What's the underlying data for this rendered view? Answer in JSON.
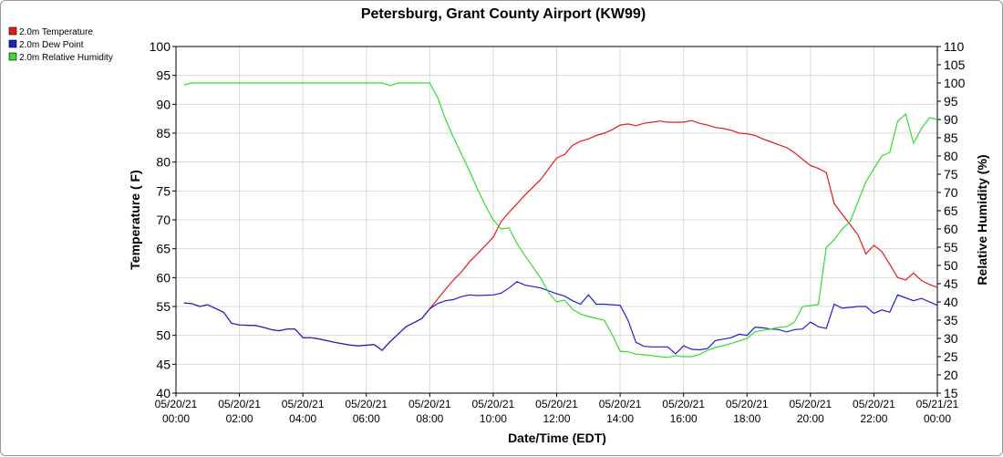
{
  "chart_data": {
    "type": "line",
    "title": "Petersburg, Grant County Airport (KW99)",
    "xlabel": "Date/Time (EDT)",
    "ylabel": "Temperature ( F)",
    "y2label": "Relative Humidity (%)",
    "xlim": [
      0,
      24
    ],
    "ylim": [
      40,
      100
    ],
    "y2lim": [
      15,
      110
    ],
    "yticks": [
      40,
      45,
      50,
      55,
      60,
      65,
      70,
      75,
      80,
      85,
      90,
      95,
      100
    ],
    "y2ticks": [
      15,
      20,
      25,
      30,
      35,
      40,
      45,
      50,
      55,
      60,
      65,
      70,
      75,
      80,
      85,
      90,
      95,
      100,
      105,
      110
    ],
    "xticks": [
      {
        "x": 0,
        "date": "05/20/21",
        "time": "00:00"
      },
      {
        "x": 2,
        "date": "05/20/21",
        "time": "02:00"
      },
      {
        "x": 4,
        "date": "05/20/21",
        "time": "04:00"
      },
      {
        "x": 6,
        "date": "05/20/21",
        "time": "06:00"
      },
      {
        "x": 8,
        "date": "05/20/21",
        "time": "08:00"
      },
      {
        "x": 10,
        "date": "05/20/21",
        "time": "10:00"
      },
      {
        "x": 12,
        "date": "05/20/21",
        "time": "12:00"
      },
      {
        "x": 14,
        "date": "05/20/21",
        "time": "14:00"
      },
      {
        "x": 16,
        "date": "05/20/21",
        "time": "16:00"
      },
      {
        "x": 18,
        "date": "05/20/21",
        "time": "18:00"
      },
      {
        "x": 20,
        "date": "05/20/21",
        "time": "20:00"
      },
      {
        "x": 22,
        "date": "05/20/21",
        "time": "22:00"
      },
      {
        "x": 24,
        "date": "05/21/21",
        "time": "00:00"
      }
    ],
    "grid": true,
    "legend_position": "top-left",
    "series": [
      {
        "name": "2.0m Temperature",
        "color": "#e41a1c",
        "axis": "left",
        "points": [
          [
            0.25,
            55.6
          ],
          [
            0.5,
            55.5
          ],
          [
            0.75,
            55.0
          ],
          [
            1.0,
            55.3
          ],
          [
            1.5,
            54.0
          ],
          [
            1.75,
            52.1
          ],
          [
            2.0,
            51.8
          ],
          [
            2.5,
            51.7
          ],
          [
            2.75,
            51.4
          ],
          [
            3.0,
            51.0
          ],
          [
            3.25,
            50.8
          ],
          [
            3.5,
            51.1
          ],
          [
            3.75,
            51.1
          ],
          [
            4.0,
            49.6
          ],
          [
            4.25,
            49.6
          ],
          [
            4.5,
            49.4
          ],
          [
            5.0,
            48.8
          ],
          [
            5.5,
            48.3
          ],
          [
            5.75,
            48.2
          ],
          [
            6.25,
            48.4
          ],
          [
            6.5,
            47.4
          ],
          [
            6.75,
            48.9
          ],
          [
            7.25,
            51.5
          ],
          [
            7.75,
            52.9
          ],
          [
            8.0,
            54.6
          ],
          [
            8.25,
            56.3
          ],
          [
            8.5,
            58.0
          ],
          [
            8.75,
            59.6
          ],
          [
            9.0,
            61.0
          ],
          [
            9.25,
            62.7
          ],
          [
            9.5,
            64.1
          ],
          [
            10.0,
            67.0
          ],
          [
            10.25,
            69.7
          ],
          [
            10.5,
            71.3
          ],
          [
            11.0,
            74.3
          ],
          [
            11.5,
            77.0
          ],
          [
            12.0,
            80.7
          ],
          [
            12.25,
            81.3
          ],
          [
            12.5,
            82.9
          ],
          [
            12.75,
            83.6
          ],
          [
            13.0,
            84.0
          ],
          [
            13.25,
            84.6
          ],
          [
            13.5,
            85.0
          ],
          [
            13.75,
            85.6
          ],
          [
            14.0,
            86.4
          ],
          [
            14.25,
            86.6
          ],
          [
            14.5,
            86.3
          ],
          [
            14.75,
            86.7
          ],
          [
            15.0,
            86.9
          ],
          [
            15.25,
            87.1
          ],
          [
            15.5,
            86.9
          ],
          [
            15.75,
            86.9
          ],
          [
            16.0,
            86.9
          ],
          [
            16.25,
            87.2
          ],
          [
            16.5,
            86.7
          ],
          [
            16.75,
            86.4
          ],
          [
            17.0,
            86.0
          ],
          [
            17.25,
            85.8
          ],
          [
            17.5,
            85.5
          ],
          [
            17.75,
            85.0
          ],
          [
            18.0,
            84.9
          ],
          [
            18.25,
            84.6
          ],
          [
            18.5,
            84.0
          ],
          [
            18.75,
            83.5
          ],
          [
            19.0,
            83.0
          ],
          [
            19.25,
            82.5
          ],
          [
            19.5,
            81.6
          ],
          [
            19.75,
            80.5
          ],
          [
            20.0,
            79.4
          ],
          [
            20.25,
            78.9
          ],
          [
            20.5,
            78.2
          ],
          [
            20.75,
            72.8
          ],
          [
            21.0,
            71.0
          ],
          [
            21.25,
            69.2
          ],
          [
            21.5,
            67.4
          ],
          [
            21.75,
            64.1
          ],
          [
            22.0,
            65.6
          ],
          [
            22.25,
            64.5
          ],
          [
            22.5,
            62.3
          ],
          [
            22.75,
            60.0
          ],
          [
            23.0,
            59.6
          ],
          [
            23.25,
            60.8
          ],
          [
            23.5,
            59.5
          ],
          [
            23.75,
            58.8
          ],
          [
            24.0,
            58.3
          ]
        ]
      },
      {
        "name": "2.0m Dew Point",
        "color": "#1f1fcf",
        "axis": "left",
        "points": [
          [
            0.25,
            55.6
          ],
          [
            0.5,
            55.5
          ],
          [
            0.75,
            55.0
          ],
          [
            1.0,
            55.3
          ],
          [
            1.5,
            54.0
          ],
          [
            1.75,
            52.1
          ],
          [
            2.0,
            51.8
          ],
          [
            2.5,
            51.7
          ],
          [
            2.75,
            51.4
          ],
          [
            3.0,
            51.0
          ],
          [
            3.25,
            50.8
          ],
          [
            3.5,
            51.1
          ],
          [
            3.75,
            51.1
          ],
          [
            4.0,
            49.6
          ],
          [
            4.25,
            49.6
          ],
          [
            4.5,
            49.4
          ],
          [
            5.0,
            48.8
          ],
          [
            5.5,
            48.3
          ],
          [
            5.75,
            48.2
          ],
          [
            6.25,
            48.4
          ],
          [
            6.5,
            47.4
          ],
          [
            6.75,
            48.9
          ],
          [
            7.25,
            51.5
          ],
          [
            7.75,
            52.9
          ],
          [
            8.0,
            54.6
          ],
          [
            8.25,
            55.5
          ],
          [
            8.5,
            56.0
          ],
          [
            8.75,
            56.2
          ],
          [
            9.0,
            56.7
          ],
          [
            9.25,
            57.0
          ],
          [
            9.5,
            56.9
          ],
          [
            10.0,
            57.0
          ],
          [
            10.25,
            57.3
          ],
          [
            10.5,
            58.2
          ],
          [
            10.75,
            59.3
          ],
          [
            11.0,
            58.7
          ],
          [
            11.5,
            58.2
          ],
          [
            12.0,
            57.2
          ],
          [
            12.25,
            56.8
          ],
          [
            12.5,
            56.0
          ],
          [
            12.75,
            55.4
          ],
          [
            13.0,
            57.0
          ],
          [
            13.25,
            55.4
          ],
          [
            13.5,
            55.4
          ],
          [
            14.0,
            55.2
          ],
          [
            14.25,
            52.6
          ],
          [
            14.5,
            48.8
          ],
          [
            14.75,
            48.1
          ],
          [
            15.0,
            48.0
          ],
          [
            15.5,
            48.0
          ],
          [
            15.75,
            46.8
          ],
          [
            16.0,
            48.2
          ],
          [
            16.25,
            47.6
          ],
          [
            16.5,
            47.5
          ],
          [
            16.75,
            47.7
          ],
          [
            17.0,
            49.1
          ],
          [
            17.5,
            49.6
          ],
          [
            17.75,
            50.2
          ],
          [
            18.0,
            50.0
          ],
          [
            18.25,
            51.4
          ],
          [
            18.5,
            51.3
          ],
          [
            18.75,
            51.1
          ],
          [
            19.0,
            51.0
          ],
          [
            19.25,
            50.6
          ],
          [
            19.5,
            51.0
          ],
          [
            19.75,
            51.1
          ],
          [
            20.0,
            52.3
          ],
          [
            20.25,
            51.5
          ],
          [
            20.5,
            51.2
          ],
          [
            20.75,
            55.4
          ],
          [
            21.0,
            54.7
          ],
          [
            21.5,
            55.0
          ],
          [
            21.75,
            55.0
          ],
          [
            22.0,
            53.8
          ],
          [
            22.25,
            54.4
          ],
          [
            22.5,
            54.0
          ],
          [
            22.75,
            57.0
          ],
          [
            23.0,
            56.5
          ],
          [
            23.25,
            56.0
          ],
          [
            23.5,
            56.4
          ],
          [
            23.75,
            55.8
          ],
          [
            24.0,
            55.2
          ]
        ]
      },
      {
        "name": "2.0m Relative Humidity",
        "color": "#33dd33",
        "axis": "right",
        "points": [
          [
            0.25,
            99.5
          ],
          [
            0.5,
            100
          ],
          [
            1.0,
            100
          ],
          [
            2.0,
            100
          ],
          [
            3.0,
            100
          ],
          [
            4.0,
            100
          ],
          [
            5.0,
            100
          ],
          [
            6.0,
            100
          ],
          [
            6.5,
            100
          ],
          [
            6.75,
            99.3
          ],
          [
            7.0,
            100
          ],
          [
            7.5,
            100
          ],
          [
            8.0,
            100
          ],
          [
            8.25,
            96.0
          ],
          [
            8.5,
            90.0
          ],
          [
            8.75,
            85.0
          ],
          [
            9.0,
            80.5
          ],
          [
            9.25,
            76.0
          ],
          [
            9.5,
            71.0
          ],
          [
            9.75,
            66.5
          ],
          [
            10.0,
            62.5
          ],
          [
            10.25,
            60.0
          ],
          [
            10.5,
            60.3
          ],
          [
            10.75,
            56.0
          ],
          [
            11.0,
            52.7
          ],
          [
            11.5,
            46.5
          ],
          [
            11.75,
            42.5
          ],
          [
            12.0,
            40.0
          ],
          [
            12.25,
            40.5
          ],
          [
            12.5,
            38.0
          ],
          [
            12.75,
            36.7
          ],
          [
            13.0,
            36.0
          ],
          [
            13.5,
            35.0
          ],
          [
            13.75,
            31.0
          ],
          [
            14.0,
            26.5
          ],
          [
            14.25,
            26.3
          ],
          [
            14.5,
            25.7
          ],
          [
            14.75,
            25.5
          ],
          [
            15.0,
            25.3
          ],
          [
            15.25,
            25.0
          ],
          [
            15.5,
            24.8
          ],
          [
            15.75,
            25.3
          ],
          [
            16.0,
            25.0
          ],
          [
            16.25,
            25.0
          ],
          [
            16.5,
            25.6
          ],
          [
            16.75,
            26.7
          ],
          [
            17.0,
            27.5
          ],
          [
            17.25,
            28.0
          ],
          [
            17.5,
            28.6
          ],
          [
            17.75,
            29.3
          ],
          [
            18.0,
            30.0
          ],
          [
            18.25,
            31.8
          ],
          [
            18.5,
            32.2
          ],
          [
            18.75,
            32.6
          ],
          [
            19.0,
            33.0
          ],
          [
            19.25,
            33.2
          ],
          [
            19.5,
            34.5
          ],
          [
            19.75,
            38.7
          ],
          [
            20.0,
            39.0
          ],
          [
            20.25,
            39.3
          ],
          [
            20.5,
            55.0
          ],
          [
            20.75,
            57.0
          ],
          [
            21.0,
            60.0
          ],
          [
            21.25,
            62.0
          ],
          [
            21.5,
            67.5
          ],
          [
            21.75,
            73.0
          ],
          [
            22.0,
            76.5
          ],
          [
            22.25,
            80.0
          ],
          [
            22.5,
            81.0
          ],
          [
            22.75,
            89.5
          ],
          [
            23.0,
            91.5
          ],
          [
            23.25,
            83.5
          ],
          [
            23.5,
            87.5
          ],
          [
            23.75,
            90.5
          ],
          [
            24.0,
            90.0
          ]
        ]
      }
    ]
  }
}
